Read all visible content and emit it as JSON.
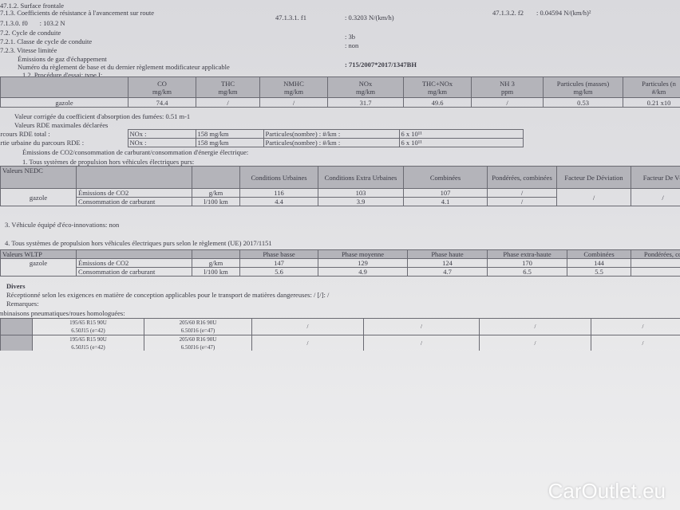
{
  "lines": {
    "surface": "47.1.2. Surface frontale",
    "coeff": "7.1.3. Coefficients de résistance à l'avancement sur route",
    "f1_label": "47.1.3.1. f1",
    "f1_value": ": 0.3203 N/(km/h)",
    "f2_label": "47.1.3.2. f2",
    "f2_value": ": 0.04594 N/(km/h)²",
    "f0": "7.1.3.0. f0       : 103.2 N",
    "cycle": "7.2.  Cycle de conduite",
    "cycle_value": ": 3b",
    "classe": "7.2.1.  Classe de cycle de conduite",
    "classe_value": ": non",
    "vitesse": "7.2.3.  Vitesse limitée",
    "emissions": "Émissions de gaz d'échappement",
    "numero": "Numéro du règlement de base et du dernier règlement modificateur applicable",
    "numero_value": ": 715/2007*2017/1347BH",
    "procedure": "1.2. Procédure d'essai: type I:",
    "fumees": "Valeur corrigée du coefficient d'absorption des fumées: 0.51 m-1",
    "rde": "Valeurs RDE maximales déclarées",
    "co2": "Émissions de CO2/consommation de carburant/consommation d'énergie électrique:",
    "systemes1": "1. Tous systèmes de propulsion hors véhicules électriques purs:",
    "eco": "3. Véhicule équipé d'éco-innovations: non",
    "systemes4": "4. Tous systèmes de propulsion hors véhicules électriques purs selon le règlement (UE) 2017/1151",
    "divers": "Divers",
    "recept": "Réceptionné selon les exigences en matière de conception applicables pour le transport de matières dangereuses: / [/]: /",
    "remarques": "Remarques:",
    "combinaisons": "Combinaisons pneumatiques/roues homologuées:"
  },
  "type1": {
    "headers": [
      [
        "CO",
        "mg/km"
      ],
      [
        "THC",
        "mg/km"
      ],
      [
        "NMHC",
        "mg/km"
      ],
      [
        "NOx",
        "mg/km"
      ],
      [
        "THC+NOx",
        "mg/km"
      ],
      [
        "NH 3",
        "ppm"
      ],
      [
        "Particules (masses)",
        "mg/km"
      ],
      [
        "Particules (n",
        "#/km"
      ]
    ],
    "row": [
      "gazole",
      "74.4",
      "/",
      "/",
      "31.7",
      "49.6",
      "/",
      "0.53",
      "0.21 x10"
    ]
  },
  "rde_table": [
    [
      "Parcours RDE total :",
      "NOx :",
      "158 mg/km",
      "Particules(nombre) : #/km :",
      "6 x 10¹¹"
    ],
    [
      "Partie urbaine du parcours RDE   :",
      "NOx :",
      "158 mg/km",
      "Particules(nombre) : #/km :",
      "6 x 10¹¹"
    ]
  ],
  "nedc": {
    "label": "Valeurs NEDC",
    "headers": [
      "Conditions Urbaines",
      "Conditions Extra Urbaines",
      "Combinées",
      "Pondérées, combinées",
      "Facteur De Déviation",
      "Facteur De Vé"
    ],
    "fuel": "gazole",
    "rows": [
      [
        "Émissions de CO2",
        "g/km",
        "116",
        "103",
        "107",
        "/"
      ],
      [
        "Consommation de carburant",
        "l/100 km",
        "4.4",
        "3.9",
        "4.1",
        "/"
      ]
    ],
    "dev": "/",
    "ver": "/"
  },
  "wltp": {
    "label": "Valeurs WLTP",
    "headers": [
      "Phase basse",
      "Phase moyenne",
      "Phase haute",
      "Phase extra-haute",
      "Combinées",
      "Pondérées, co"
    ],
    "fuel": "gazole",
    "rows": [
      [
        "Émissions de CO2",
        "g/km",
        "147",
        "129",
        "124",
        "170",
        "144",
        ""
      ],
      [
        "Consommation de carburant",
        "l/100 km",
        "5.6",
        "4.9",
        "4.7",
        "6.5",
        "5.5",
        ""
      ]
    ]
  },
  "tyres": [
    [
      "195/65 R15 90U",
      "6.50J15 (e=42)",
      "205/60 R16 90U",
      "6.50J16 (e=47)",
      "/",
      "/",
      "/",
      "/"
    ],
    [
      "195/65 R15 90U",
      "6.50J15 (e=42)",
      "205/60 R16 90U",
      "6.50J16 (e=47)",
      "/",
      "/",
      "/",
      "/"
    ]
  ],
  "watermark": "CarOutlet.eu"
}
